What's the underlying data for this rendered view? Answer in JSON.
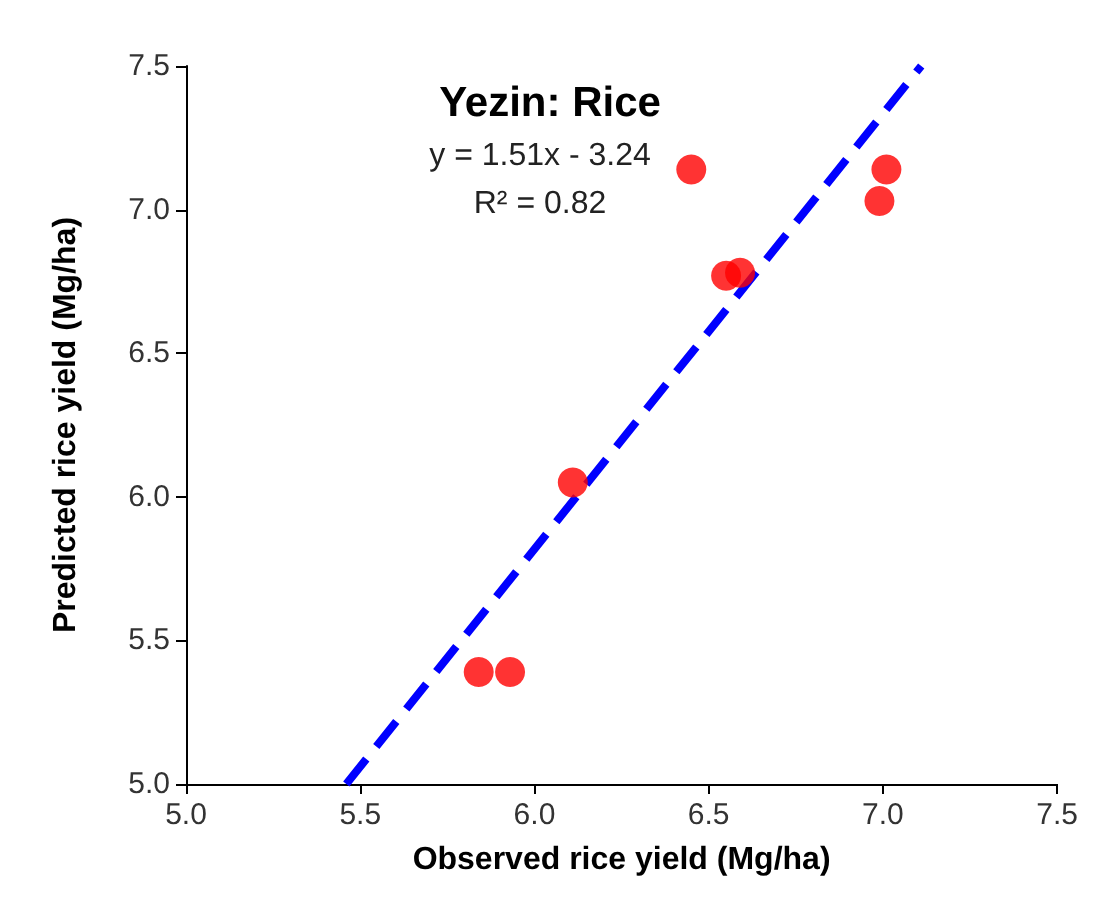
{
  "chart_data": {
    "type": "scatter",
    "title": "Yezin: Rice",
    "xlabel": "Observed rice yield (Mg/ha)",
    "ylabel": "Predicted rice yield (Mg/ha)",
    "annotations": [
      "y = 1.51x - 3.24",
      "R² = 0.82"
    ],
    "series": [
      {
        "color": "#ff0000",
        "marker": "circle",
        "x": [
          5.84,
          5.93,
          6.11,
          6.45,
          6.55,
          6.59,
          6.99,
          7.01
        ],
        "values": [
          5.39,
          5.39,
          6.05,
          7.14,
          6.77,
          6.78,
          7.03,
          7.14
        ]
      },
      {
        "type": "line",
        "color": "#0000ff",
        "line_style": "dashed",
        "marker": "none",
        "x": [
          5.46,
          7.11
        ],
        "values": [
          5.0,
          7.5
        ]
      }
    ],
    "xlim": [
      5.0,
      7.5
    ],
    "xticks": [
      {
        "value": 5,
        "label": "5.0"
      },
      5.5,
      {
        "value": 6,
        "label": "6.0"
      },
      6.5,
      {
        "value": 7,
        "label": "7.0"
      },
      7.5
    ],
    "ylim": [
      5.0,
      7.5
    ],
    "yticks": [
      {
        "value": 5,
        "label": "5.0"
      },
      5.5,
      {
        "value": 6,
        "label": "6.0"
      },
      6.5,
      {
        "value": 7,
        "label": "7.0"
      },
      7.5
    ],
    "grid": false
  }
}
